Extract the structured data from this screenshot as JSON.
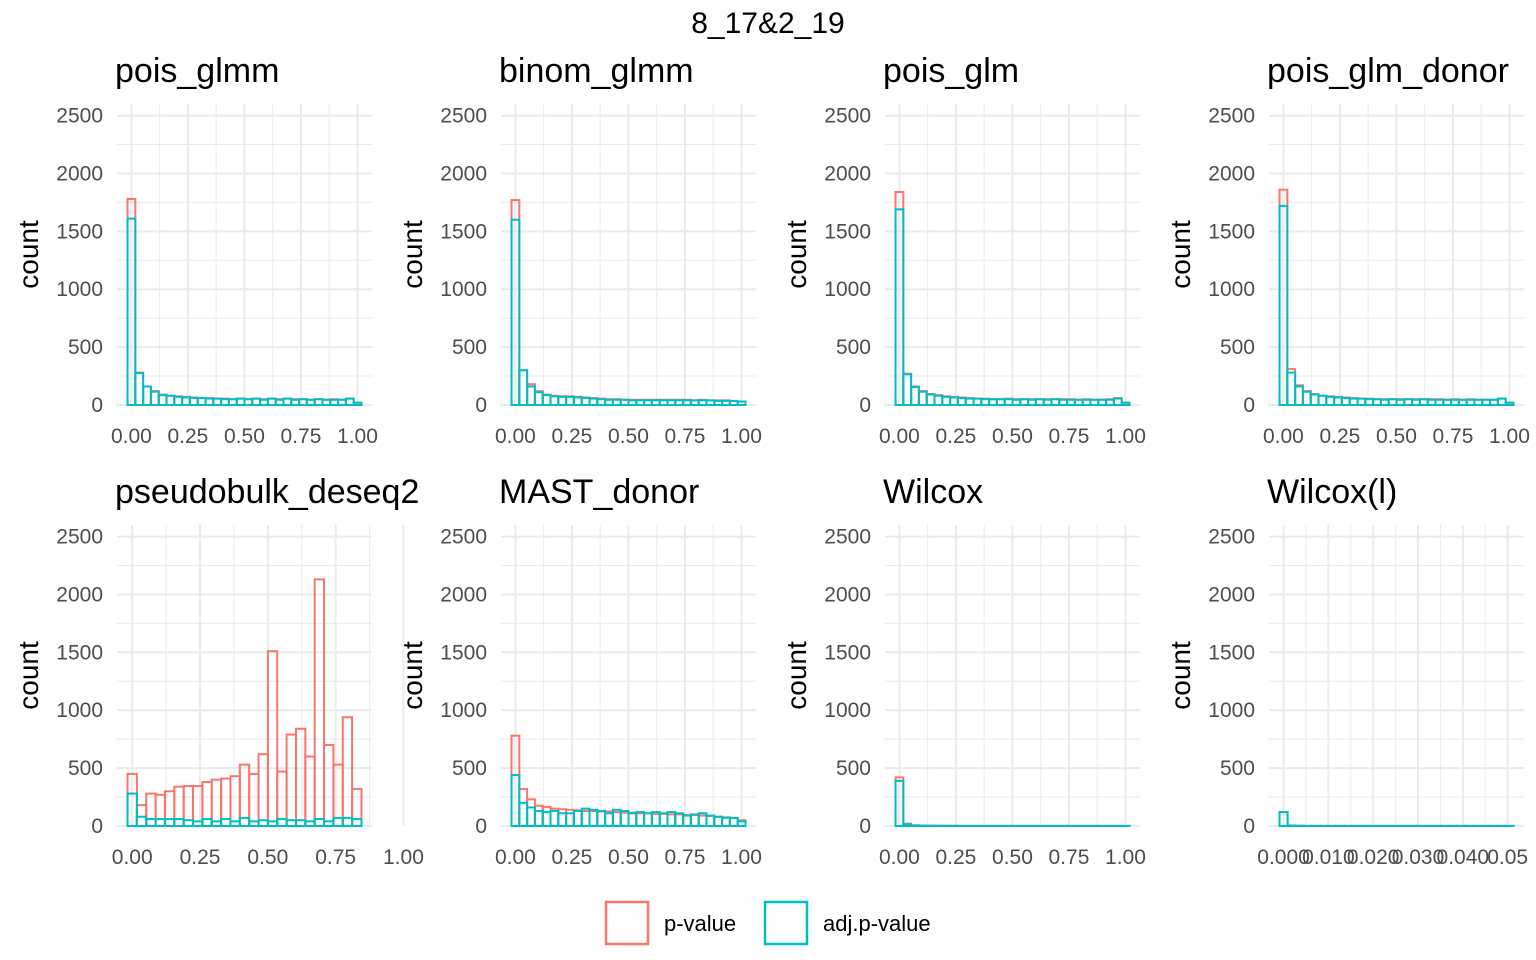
{
  "figure_title": "8_17&2_19",
  "colors": {
    "p_value": "#F8766D",
    "adj_p_value": "#00BFC4",
    "grid": "#EBEBEB",
    "tick_text": "#4D4D4D"
  },
  "legend": {
    "position": "bottom",
    "items": [
      {
        "label": "p-value",
        "color": "#F8766D"
      },
      {
        "label": "adj.p-value",
        "color": "#00BFC4"
      }
    ]
  },
  "chart_data": [
    {
      "type": "histogram",
      "title": "pois_glmm",
      "ylabel": "count",
      "xlabel": "",
      "ylim": [
        0,
        2600
      ],
      "yticks": [
        0,
        500,
        1000,
        1500,
        2000,
        2500
      ],
      "xticks": [
        0,
        0.25,
        0.5,
        0.75,
        1
      ],
      "xtick_labels": [
        "0.00",
        "0.25",
        "0.50",
        "0.75",
        "1.00"
      ],
      "bin_width": 0.0345,
      "bin_start": -0.01725,
      "series": [
        {
          "name": "p-value",
          "values": [
            1780,
            280,
            160,
            120,
            90,
            80,
            75,
            70,
            65,
            60,
            60,
            55,
            55,
            50,
            55,
            50,
            55,
            50,
            55,
            50,
            55,
            50,
            50,
            45,
            50,
            45,
            50,
            45,
            55,
            20
          ]
        },
        {
          "name": "adj.p-value",
          "values": [
            1610,
            275,
            160,
            115,
            85,
            80,
            70,
            65,
            60,
            60,
            55,
            55,
            50,
            50,
            55,
            50,
            55,
            45,
            55,
            45,
            55,
            45,
            50,
            45,
            50,
            45,
            45,
            45,
            55,
            20
          ]
        }
      ]
    },
    {
      "type": "histogram",
      "title": "binom_glmm",
      "ylabel": "count",
      "xlabel": "",
      "ylim": [
        0,
        2600
      ],
      "yticks": [
        0,
        500,
        1000,
        1500,
        2000,
        2500
      ],
      "xticks": [
        0,
        0.25,
        0.5,
        0.75,
        1
      ],
      "xtick_labels": [
        "0.00",
        "0.25",
        "0.50",
        "0.75",
        "1.00"
      ],
      "bin_width": 0.0345,
      "bin_start": -0.01725,
      "series": [
        {
          "name": "p-value",
          "values": [
            1770,
            300,
            180,
            120,
            90,
            80,
            75,
            75,
            70,
            65,
            60,
            55,
            50,
            50,
            45,
            45,
            45,
            45,
            45,
            45,
            45,
            45,
            45,
            40,
            45,
            40,
            40,
            40,
            35,
            30
          ]
        },
        {
          "name": "adj.p-value",
          "values": [
            1600,
            300,
            160,
            110,
            85,
            75,
            70,
            70,
            65,
            60,
            55,
            50,
            45,
            45,
            45,
            40,
            40,
            40,
            40,
            40,
            40,
            40,
            40,
            40,
            40,
            40,
            35,
            35,
            35,
            30
          ]
        }
      ]
    },
    {
      "type": "histogram",
      "title": "pois_glm",
      "ylabel": "count",
      "xlabel": "",
      "ylim": [
        0,
        2600
      ],
      "yticks": [
        0,
        500,
        1000,
        1500,
        2000,
        2500
      ],
      "xticks": [
        0,
        0.25,
        0.5,
        0.75,
        1
      ],
      "xtick_labels": [
        "0.00",
        "0.25",
        "0.50",
        "0.75",
        "1.00"
      ],
      "bin_width": 0.0345,
      "bin_start": -0.01725,
      "series": [
        {
          "name": "p-value",
          "values": [
            1840,
            270,
            160,
            120,
            95,
            85,
            75,
            70,
            65,
            60,
            55,
            55,
            50,
            50,
            55,
            50,
            50,
            50,
            50,
            50,
            50,
            50,
            50,
            45,
            50,
            45,
            45,
            50,
            60,
            20
          ]
        },
        {
          "name": "adj.p-value",
          "values": [
            1690,
            265,
            155,
            115,
            90,
            80,
            70,
            65,
            60,
            55,
            55,
            50,
            50,
            50,
            50,
            45,
            50,
            45,
            50,
            45,
            50,
            45,
            45,
            45,
            45,
            45,
            45,
            45,
            55,
            20
          ]
        }
      ]
    },
    {
      "type": "histogram",
      "title": "pois_glm_donor",
      "ylabel": "count",
      "xlabel": "",
      "ylim": [
        0,
        2600
      ],
      "yticks": [
        0,
        500,
        1000,
        1500,
        2000,
        2500
      ],
      "xticks": [
        0,
        0.25,
        0.5,
        0.75,
        1
      ],
      "xtick_labels": [
        "0.00",
        "0.25",
        "0.50",
        "0.75",
        "1.00"
      ],
      "bin_width": 0.0345,
      "bin_start": -0.01725,
      "series": [
        {
          "name": "p-value",
          "values": [
            1860,
            310,
            170,
            120,
            95,
            80,
            75,
            70,
            65,
            60,
            55,
            55,
            50,
            50,
            50,
            50,
            50,
            50,
            50,
            50,
            50,
            45,
            50,
            45,
            50,
            45,
            45,
            45,
            55,
            20
          ]
        },
        {
          "name": "adj.p-value",
          "values": [
            1720,
            280,
            160,
            115,
            90,
            80,
            70,
            65,
            60,
            55,
            55,
            50,
            50,
            45,
            50,
            45,
            50,
            45,
            50,
            45,
            45,
            45,
            45,
            45,
            45,
            45,
            45,
            45,
            55,
            20
          ]
        }
      ]
    },
    {
      "type": "histogram",
      "title": "pseudobulk_deseq2",
      "ylabel": "count",
      "xlabel": "",
      "ylim": [
        0,
        2600
      ],
      "yticks": [
        0,
        500,
        1000,
        1500,
        2000,
        2500
      ],
      "xticks": [
        0,
        0.25,
        0.5,
        0.75,
        1
      ],
      "xtick_labels": [
        "0.00",
        "0.25",
        "0.50",
        "0.75",
        "1.00"
      ],
      "bin_width": 0.0345,
      "bin_start": -0.01725,
      "series": [
        {
          "name": "p-value",
          "values": [
            450,
            180,
            280,
            270,
            300,
            340,
            345,
            345,
            380,
            400,
            410,
            430,
            530,
            450,
            620,
            1510,
            470,
            790,
            840,
            600,
            2130,
            700,
            530,
            940,
            320
          ]
        },
        {
          "name": "adj.p-value",
          "values": [
            280,
            80,
            60,
            60,
            60,
            60,
            50,
            40,
            60,
            40,
            60,
            40,
            70,
            40,
            50,
            40,
            60,
            50,
            50,
            40,
            60,
            40,
            70,
            70,
            60
          ]
        }
      ]
    },
    {
      "type": "histogram",
      "title": "MAST_donor",
      "ylabel": "count",
      "xlabel": "",
      "ylim": [
        0,
        2600
      ],
      "yticks": [
        0,
        500,
        1000,
        1500,
        2000,
        2500
      ],
      "xticks": [
        0,
        0.25,
        0.5,
        0.75,
        1
      ],
      "xtick_labels": [
        "0.00",
        "0.25",
        "0.50",
        "0.75",
        "1.00"
      ],
      "bin_width": 0.0345,
      "bin_start": -0.01725,
      "series": [
        {
          "name": "p-value",
          "values": [
            780,
            320,
            230,
            175,
            165,
            150,
            145,
            140,
            135,
            130,
            130,
            125,
            125,
            120,
            115,
            115,
            110,
            110,
            105,
            105,
            100,
            100,
            95,
            95,
            90,
            85,
            80,
            75,
            70,
            50
          ]
        },
        {
          "name": "adj.p-value",
          "values": [
            440,
            200,
            160,
            130,
            120,
            130,
            110,
            110,
            130,
            150,
            140,
            130,
            110,
            140,
            130,
            110,
            120,
            110,
            120,
            110,
            120,
            110,
            90,
            100,
            110,
            90,
            80,
            70,
            70,
            40
          ]
        }
      ]
    },
    {
      "type": "histogram",
      "title": "Wilcox",
      "ylabel": "count",
      "xlabel": "",
      "ylim": [
        0,
        2600
      ],
      "yticks": [
        0,
        500,
        1000,
        1500,
        2000,
        2500
      ],
      "xticks": [
        0,
        0.25,
        0.5,
        0.75,
        1
      ],
      "xtick_labels": [
        "0.00",
        "0.25",
        "0.50",
        "0.75",
        "1.00"
      ],
      "bin_width": 0.0345,
      "bin_start": -0.01725,
      "series": [
        {
          "name": "p-value",
          "values": [
            420,
            20,
            6,
            4,
            3,
            2,
            2,
            2,
            1,
            1,
            1,
            1,
            1,
            1,
            1,
            1,
            1,
            1,
            1,
            1,
            1,
            1,
            1,
            1,
            1,
            1,
            1,
            1,
            1,
            1
          ]
        },
        {
          "name": "adj.p-value",
          "values": [
            390,
            15,
            5,
            3,
            2,
            2,
            1,
            1,
            1,
            1,
            1,
            1,
            1,
            1,
            1,
            1,
            1,
            1,
            1,
            1,
            1,
            1,
            1,
            1,
            1,
            1,
            1,
            1,
            1,
            1
          ]
        }
      ]
    },
    {
      "type": "histogram",
      "title": "Wilcox(l)",
      "ylabel": "count",
      "xlabel": "",
      "ylim": [
        0,
        2600
      ],
      "yticks": [
        0,
        500,
        1000,
        1500,
        2000,
        2500
      ],
      "xticks": [
        0,
        0.01,
        0.02,
        0.03,
        0.04,
        0.05
      ],
      "xtick_labels": [
        "0.000",
        "0.010",
        "0.020",
        "0.030",
        "0.040",
        "0.05"
      ],
      "bin_width": 0.0018,
      "bin_start": -0.0009,
      "series": [
        {
          "name": "p-value",
          "values": [
            120,
            4,
            2,
            1,
            1,
            1,
            1,
            1,
            1,
            1,
            1,
            1,
            1,
            1,
            1,
            1,
            1,
            1,
            1,
            1,
            1,
            1,
            1,
            1,
            1,
            1,
            1,
            1,
            1
          ]
        },
        {
          "name": "adj.p-value",
          "values": [
            120,
            4,
            2,
            1,
            1,
            1,
            1,
            1,
            1,
            1,
            1,
            1,
            1,
            1,
            1,
            1,
            1,
            1,
            1,
            1,
            1,
            1,
            1,
            1,
            1,
            1,
            1,
            1,
            1
          ]
        }
      ]
    }
  ]
}
